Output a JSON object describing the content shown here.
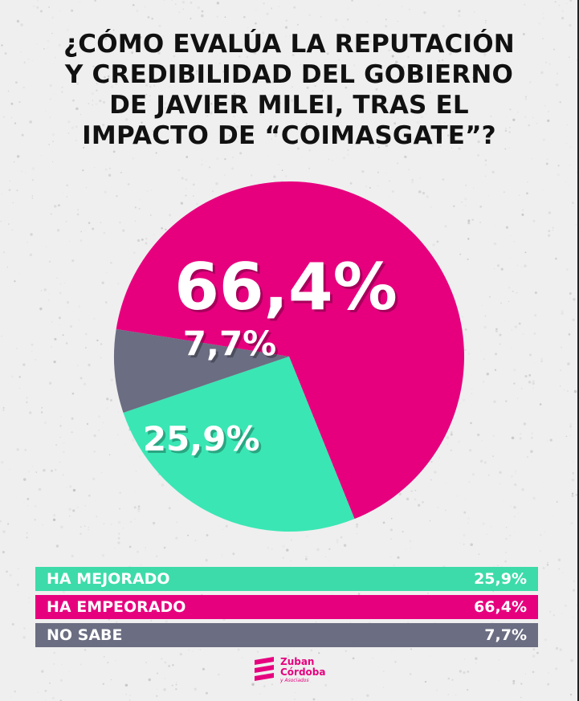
{
  "title_lines": [
    "¿CÓMO EVALÚA LA REPUTACIÓN",
    "Y CREDIBILIDAD DEL GOBIERNO",
    "DE JAVIER MILEI, TRAS EL",
    "IMPACTO DE “COIMASGATE”?"
  ],
  "chart_data": {
    "type": "pie",
    "slices": [
      {
        "label": "HA EMPEORADO",
        "value": 66.4,
        "display": "66,4%",
        "color": "#e6007e"
      },
      {
        "label": "HA MEJORADO",
        "value": 25.9,
        "display": "25,9%",
        "color": "#3ae6b4"
      },
      {
        "label": "NO SABE",
        "value": 7.7,
        "display": "7,7%",
        "color": "#6b6d82"
      }
    ]
  },
  "legend": [
    {
      "label": "HA MEJORADO",
      "value": "25,9%",
      "color": "#3ddba9"
    },
    {
      "label": "HA EMPEORADO",
      "value": "66,4%",
      "color": "#e6007e"
    },
    {
      "label": "NO SABE",
      "value": "7,7%",
      "color": "#6b6d82"
    }
  ],
  "logo": {
    "line1": "Zuban",
    "line2": "Córdoba",
    "line3": "y Asociados"
  }
}
